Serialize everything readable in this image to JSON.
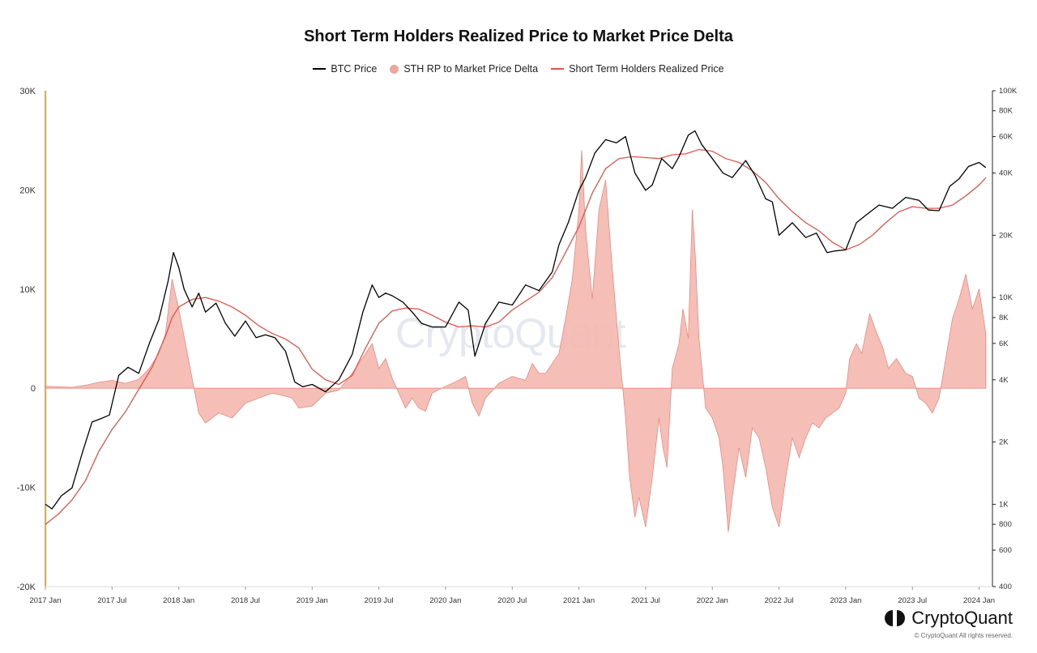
{
  "title": "Short Term Holders Realized Price to Market Price Delta",
  "legend": {
    "btc": "BTC Price",
    "delta": "STH RP to Market Price Delta",
    "sth": "Short Term Holders Realized Price"
  },
  "colors": {
    "btc": "#000000",
    "delta_fill": "#f4b8b0",
    "delta_stroke": "#e8897e",
    "sth": "#e0554a",
    "left_axis": "#e8a64a",
    "grid": "#eeeeee"
  },
  "brand": {
    "name": "CryptoQuant",
    "copyright": "© CryptoQuant All rights reserved.",
    "logo_icon": "cryptoquant-logo-icon"
  },
  "chart_data": {
    "type": "line",
    "title": "Short Term Holders Realized Price to Market Price Delta",
    "x_ticks": [
      "2017 Jan",
      "2017 Jul",
      "2018 Jan",
      "2018 Jul",
      "2019 Jan",
      "2019 Jul",
      "2020 Jan",
      "2020 Jul",
      "2021 Jan",
      "2021 Jul",
      "2022 Jan",
      "2022 Jul",
      "2023 Jan",
      "2023 Jul",
      "2024 Jan"
    ],
    "left_axis": {
      "ticks": [
        "30K",
        "20K",
        "10K",
        "0",
        "-10K",
        "-20K"
      ],
      "range": [
        -20000,
        30000
      ]
    },
    "right_axis": {
      "scale": "log",
      "ticks": [
        "100K",
        "80K",
        "60K",
        "40K",
        "20K",
        "10K",
        "8K",
        "6K",
        "4K",
        "2K",
        "1K",
        "800",
        "600",
        "400"
      ],
      "range": [
        400,
        100000
      ]
    },
    "x_range": [
      2017.0,
      2024.1
    ],
    "series": [
      {
        "name": "BTC Price",
        "axis": "right",
        "type": "line",
        "x": [
          2017.0,
          2017.05,
          2017.12,
          2017.2,
          2017.28,
          2017.35,
          2017.42,
          2017.48,
          2017.55,
          2017.62,
          2017.7,
          2017.78,
          2017.85,
          2017.92,
          2017.96,
          2018.0,
          2018.04,
          2018.1,
          2018.15,
          2018.2,
          2018.28,
          2018.35,
          2018.42,
          2018.5,
          2018.58,
          2018.65,
          2018.72,
          2018.8,
          2018.87,
          2018.93,
          2019.0,
          2019.1,
          2019.2,
          2019.3,
          2019.38,
          2019.45,
          2019.5,
          2019.55,
          2019.6,
          2019.68,
          2019.75,
          2019.82,
          2019.9,
          2020.0,
          2020.1,
          2020.17,
          2020.22,
          2020.3,
          2020.4,
          2020.5,
          2020.6,
          2020.7,
          2020.8,
          2020.85,
          2020.92,
          2021.0,
          2021.05,
          2021.12,
          2021.2,
          2021.28,
          2021.35,
          2021.42,
          2021.5,
          2021.55,
          2021.62,
          2021.7,
          2021.75,
          2021.82,
          2021.87,
          2021.92,
          2022.0,
          2022.08,
          2022.15,
          2022.25,
          2022.32,
          2022.4,
          2022.45,
          2022.5,
          2022.6,
          2022.7,
          2022.78,
          2022.86,
          2022.92,
          2023.0,
          2023.08,
          2023.15,
          2023.25,
          2023.35,
          2023.45,
          2023.55,
          2023.62,
          2023.7,
          2023.78,
          2023.85,
          2023.92,
          2024.0,
          2024.05
        ],
        "y": [
          1000,
          950,
          1100,
          1200,
          1800,
          2500,
          2600,
          2700,
          4200,
          4600,
          4300,
          6000,
          7800,
          12000,
          16500,
          14000,
          11000,
          9000,
          10500,
          8500,
          9400,
          7500,
          6500,
          7700,
          6400,
          6600,
          6400,
          5500,
          3900,
          3700,
          3800,
          3500,
          4000,
          5300,
          8500,
          11500,
          10000,
          10500,
          10200,
          9500,
          8500,
          7500,
          7200,
          7200,
          9500,
          8700,
          5200,
          7500,
          9500,
          9200,
          11500,
          10800,
          13300,
          18000,
          23000,
          33000,
          38000,
          50000,
          58000,
          56000,
          60000,
          40000,
          33000,
          35000,
          47000,
          42000,
          48000,
          61000,
          64000,
          55000,
          47000,
          40000,
          38000,
          46000,
          39000,
          30000,
          29000,
          20000,
          23000,
          19500,
          20500,
          16500,
          16800,
          17000,
          23000,
          25000,
          28000,
          27000,
          30500,
          29500,
          26500,
          26300,
          34500,
          37500,
          43000,
          45000,
          42500
        ]
      },
      {
        "name": "Short Term Holders Realized Price",
        "axis": "right",
        "type": "line",
        "x": [
          2017.0,
          2017.1,
          2017.2,
          2017.3,
          2017.4,
          2017.5,
          2017.6,
          2017.7,
          2017.8,
          2017.9,
          2017.95,
          2018.0,
          2018.1,
          2018.2,
          2018.3,
          2018.4,
          2018.5,
          2018.6,
          2018.7,
          2018.8,
          2018.9,
          2019.0,
          2019.1,
          2019.2,
          2019.3,
          2019.4,
          2019.5,
          2019.6,
          2019.7,
          2019.8,
          2019.9,
          2020.0,
          2020.1,
          2020.2,
          2020.3,
          2020.4,
          2020.5,
          2020.6,
          2020.7,
          2020.8,
          2020.9,
          2021.0,
          2021.1,
          2021.2,
          2021.3,
          2021.4,
          2021.5,
          2021.6,
          2021.7,
          2021.8,
          2021.9,
          2022.0,
          2022.1,
          2022.2,
          2022.3,
          2022.4,
          2022.5,
          2022.6,
          2022.7,
          2022.8,
          2022.9,
          2023.0,
          2023.1,
          2023.2,
          2023.3,
          2023.4,
          2023.5,
          2023.6,
          2023.7,
          2023.8,
          2023.9,
          2024.0,
          2024.05
        ],
        "y": [
          800,
          900,
          1050,
          1300,
          1800,
          2300,
          2800,
          3600,
          4600,
          6500,
          8000,
          9000,
          9800,
          10000,
          9600,
          9000,
          8200,
          7300,
          6700,
          6300,
          5700,
          4500,
          4000,
          3800,
          4200,
          5700,
          7500,
          8600,
          8900,
          8800,
          8200,
          7600,
          7200,
          7300,
          7200,
          7600,
          8700,
          9600,
          10600,
          12500,
          16500,
          22000,
          32000,
          42000,
          47000,
          48000,
          47500,
          47000,
          49000,
          49500,
          52000,
          51000,
          47000,
          45000,
          41000,
          36000,
          30000,
          26000,
          23000,
          21000,
          18500,
          17000,
          18000,
          20000,
          23000,
          26000,
          27500,
          27000,
          27000,
          28000,
          31000,
          35000,
          38000
        ]
      },
      {
        "name": "STH RP to Market Price Delta",
        "axis": "left",
        "type": "area",
        "x": [
          2017.0,
          2017.1,
          2017.2,
          2017.3,
          2017.4,
          2017.5,
          2017.6,
          2017.7,
          2017.78,
          2017.85,
          2017.9,
          2017.95,
          2018.0,
          2018.05,
          2018.1,
          2018.15,
          2018.2,
          2018.3,
          2018.4,
          2018.5,
          2018.6,
          2018.7,
          2018.8,
          2018.85,
          2018.9,
          2019.0,
          2019.1,
          2019.2,
          2019.3,
          2019.4,
          2019.45,
          2019.5,
          2019.55,
          2019.6,
          2019.65,
          2019.7,
          2019.75,
          2019.8,
          2019.85,
          2019.9,
          2020.0,
          2020.1,
          2020.15,
          2020.2,
          2020.25,
          2020.3,
          2020.4,
          2020.5,
          2020.6,
          2020.65,
          2020.7,
          2020.75,
          2020.8,
          2020.85,
          2020.9,
          2020.95,
          2021.0,
          2021.02,
          2021.05,
          2021.1,
          2021.15,
          2021.2,
          2021.25,
          2021.3,
          2021.35,
          2021.38,
          2021.42,
          2021.45,
          2021.5,
          2021.55,
          2021.6,
          2021.63,
          2021.66,
          2021.7,
          2021.75,
          2021.78,
          2021.82,
          2021.85,
          2021.87,
          2021.9,
          2021.95,
          2022.0,
          2022.05,
          2022.08,
          2022.12,
          2022.15,
          2022.2,
          2022.25,
          2022.3,
          2022.35,
          2022.4,
          2022.45,
          2022.5,
          2022.55,
          2022.6,
          2022.65,
          2022.7,
          2022.75,
          2022.8,
          2022.85,
          2022.9,
          2022.95,
          2023.0,
          2023.03,
          2023.08,
          2023.12,
          2023.18,
          2023.22,
          2023.28,
          2023.32,
          2023.38,
          2023.45,
          2023.5,
          2023.55,
          2023.6,
          2023.65,
          2023.7,
          2023.75,
          2023.8,
          2023.85,
          2023.9,
          2023.95,
          2024.0,
          2024.05
        ],
        "y": [
          200,
          150,
          100,
          300,
          600,
          800,
          500,
          900,
          2000,
          3500,
          5500,
          11000,
          8000,
          4500,
          1000,
          -2500,
          -3500,
          -2500,
          -3000,
          -1500,
          -1000,
          -500,
          -800,
          -1000,
          -2000,
          -1800,
          -500,
          -200,
          1500,
          3500,
          4500,
          2000,
          3000,
          1000,
          -500,
          -2000,
          -1000,
          -2000,
          -2300,
          -500,
          200,
          800,
          1200,
          -1500,
          -2800,
          -1000,
          500,
          1200,
          800,
          2500,
          1500,
          1500,
          2500,
          3500,
          7000,
          11000,
          18000,
          24000,
          16000,
          9000,
          18000,
          21000,
          12000,
          4000,
          -3000,
          -9000,
          -13000,
          -11000,
          -14000,
          -9000,
          -3000,
          -6000,
          -8000,
          2000,
          4500,
          8000,
          5000,
          18000,
          14000,
          5000,
          -2000,
          -3000,
          -5000,
          -8000,
          -14500,
          -11000,
          -6000,
          -9000,
          -4000,
          -5000,
          -8000,
          -12000,
          -14000,
          -9000,
          -5000,
          -7000,
          -5000,
          -3500,
          -4000,
          -3000,
          -2500,
          -2000,
          -500,
          3000,
          4500,
          3500,
          7500,
          6000,
          4000,
          2000,
          3000,
          1500,
          1200,
          -1000,
          -1500,
          -2500,
          -1000,
          3000,
          7000,
          9000,
          11500,
          8000,
          10000,
          5500
        ]
      }
    ]
  }
}
